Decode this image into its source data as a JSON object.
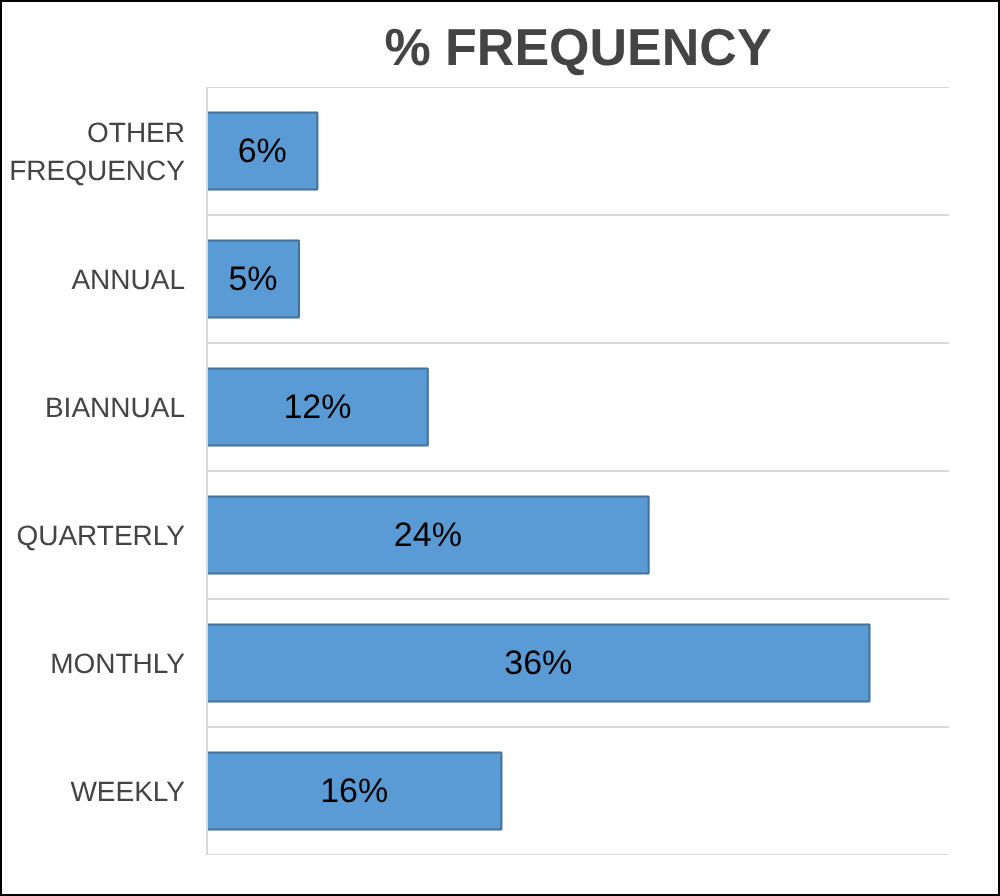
{
  "chart_data": {
    "type": "bar",
    "orientation": "horizontal",
    "title": "% FREQUENCY",
    "categories": [
      "OTHER FREQUENCY",
      "ANNUAL",
      "BIANNUAL",
      "QUARTERLY",
      "MONTHLY",
      "WEEKLY"
    ],
    "values": [
      6,
      5,
      12,
      24,
      36,
      16
    ],
    "value_labels": [
      "6%",
      "5%",
      "12%",
      "24%",
      "36%",
      "16%"
    ],
    "color": "#5b9bd5",
    "grid": "y"
  }
}
